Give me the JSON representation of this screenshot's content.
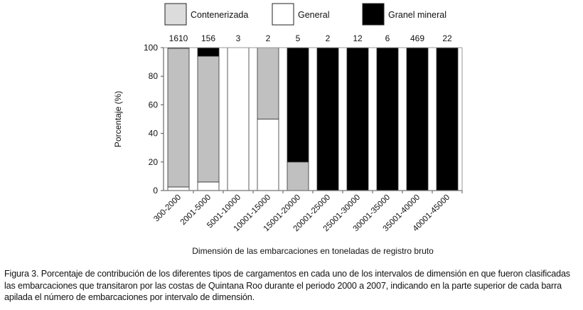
{
  "chart_data": {
    "type": "bar",
    "stacked": true,
    "categories": [
      "300-2000",
      "2001-5000",
      "5001-10000",
      "10001-15000",
      "15001-20000",
      "20001-25000",
      "25001-30000",
      "30001-35000",
      "35001-40000",
      "40001-45000"
    ],
    "bar_top_labels": [
      "1610",
      "156",
      "3",
      "2",
      "5",
      "2",
      "12",
      "6",
      "469",
      "22"
    ],
    "series": [
      {
        "name": "General",
        "color": "#ffffff",
        "values": [
          2.5,
          6,
          100,
          50,
          0,
          0,
          0,
          0,
          0,
          0
        ]
      },
      {
        "name": "Contenerizada",
        "color": "#c0c0c0",
        "values": [
          97,
          88,
          0,
          50,
          20,
          0,
          0,
          0,
          0,
          0
        ]
      },
      {
        "name": "Granel mineral",
        "color": "#000000",
        "values": [
          0.5,
          6,
          0,
          0,
          80,
          100,
          100,
          100,
          100,
          100
        ]
      }
    ],
    "legend_order": [
      "Contenerizada",
      "General",
      "Granel mineral"
    ],
    "legend_colors": [
      "#dcdcdc",
      "#ffffff",
      "#000000"
    ],
    "legend_placement": "top",
    "ylabel": "Porcentaje (%)",
    "xlabel": "Dimensión de las embarcaciones en toneladas de registro bruto",
    "ylim": [
      0,
      100
    ],
    "yticks": [
      "0",
      "20",
      "40",
      "60",
      "80",
      "100"
    ],
    "grid": false
  },
  "caption": "Figura 3. Porcentaje de contribución de los diferentes tipos de cargamentos en cada uno de los intervalos de dimensión en que fueron clasificadas las embarcaciones que transitaron por las costas de Quintana Roo durante el periodo 2000 a 2007, indicando en la parte superior de cada barra apilada el número de embarcaciones por intervalo de dimensión."
}
